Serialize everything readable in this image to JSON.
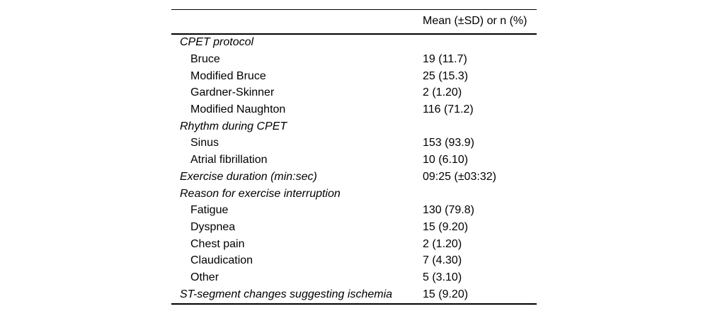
{
  "colors": {
    "background": "#ffffff",
    "text": "#000000",
    "rule": "#000000"
  },
  "table": {
    "value_header": "Mean (±SD) or n (%)",
    "rows": [
      {
        "label": "CPET protocol",
        "value": "",
        "style": "category"
      },
      {
        "label": "Bruce",
        "value": "19 (11.7)",
        "style": "sub"
      },
      {
        "label": "Modified Bruce",
        "value": "25 (15.3)",
        "style": "sub"
      },
      {
        "label": "Gardner-Skinner",
        "value": "2 (1.20)",
        "style": "sub"
      },
      {
        "label": "Modified Naughton",
        "value": "116 (71.2)",
        "style": "sub"
      },
      {
        "label": "Rhythm during CPET",
        "value": "",
        "style": "category"
      },
      {
        "label": "Sinus",
        "value": "153 (93.9)",
        "style": "sub"
      },
      {
        "label": "Atrial fibrillation",
        "value": "10 (6.10)",
        "style": "sub"
      },
      {
        "label": "Exercise duration (min:sec)",
        "value": "09:25 (±03:32)",
        "style": "category"
      },
      {
        "label": "Reason for exercise interruption",
        "value": "",
        "style": "category"
      },
      {
        "label": "Fatigue",
        "value": "130 (79.8)",
        "style": "sub"
      },
      {
        "label": "Dyspnea",
        "value": "15 (9.20)",
        "style": "sub"
      },
      {
        "label": "Chest pain",
        "value": "2 (1.20)",
        "style": "sub"
      },
      {
        "label": "Claudication",
        "value": "7 (4.30)",
        "style": "sub"
      },
      {
        "label": "Other",
        "value": "5 (3.10)",
        "style": "sub"
      },
      {
        "label": "ST-segment changes suggesting ischemia",
        "value": "15 (9.20)",
        "style": "category"
      }
    ]
  }
}
